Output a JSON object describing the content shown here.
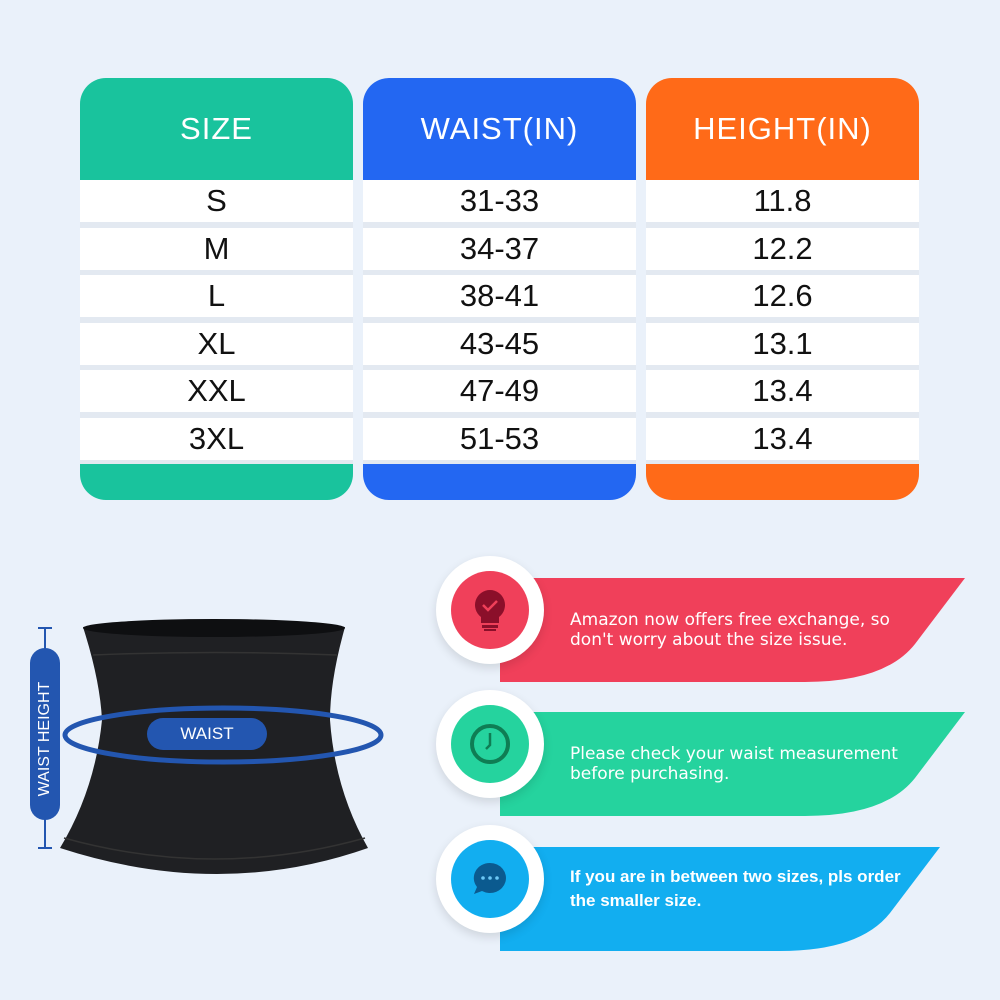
{
  "colors": {
    "size": "#19c39d",
    "waist": "#2367f2",
    "height": "#ff6a18",
    "tip1": "#f0405a",
    "tip2": "#25d39e",
    "tip3": "#12aef0",
    "belt_accent": "#2356b0"
  },
  "table": {
    "headers": [
      "SIZE",
      "WAIST(IN)",
      "HEIGHT(IN)"
    ],
    "rows": [
      [
        "S",
        "31-33",
        "11.8"
      ],
      [
        "M",
        "34-37",
        "12.2"
      ],
      [
        "L",
        "38-41",
        "12.6"
      ],
      [
        "XL",
        "43-45",
        "13.1"
      ],
      [
        "XXL",
        "47-49",
        "13.4"
      ],
      [
        "3XL",
        "51-53",
        "13.4"
      ]
    ]
  },
  "diagram": {
    "waist_label": "WAIST",
    "height_label": "WAIST HEIGHT"
  },
  "tips": [
    {
      "icon": "lightbulb-check-icon",
      "text": "Amazon now offers free exchange, so don't worry about the size issue."
    },
    {
      "icon": "clock-icon",
      "text": "Please check your waist measurement before purchasing."
    },
    {
      "icon": "chat-bubble-icon",
      "text": "If you are in between two sizes, pls order the smaller size."
    }
  ]
}
